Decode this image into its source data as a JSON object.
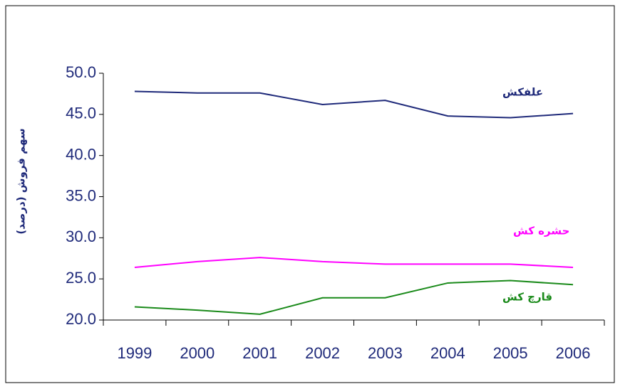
{
  "chart_data": {
    "type": "line",
    "y_axis_label": "سهم فروش (درصد)",
    "categories": [
      "1999",
      "2000",
      "2001",
      "2002",
      "2003",
      "2004",
      "2005",
      "2006"
    ],
    "series": [
      {
        "name": "علفکش",
        "color": "#1f2a7a",
        "values": [
          47.8,
          47.6,
          47.6,
          46.2,
          46.7,
          44.8,
          44.6,
          45.1
        ]
      },
      {
        "name": "حشره کش",
        "color": "#ff00ff",
        "values": [
          26.4,
          27.1,
          27.6,
          27.1,
          26.8,
          26.8,
          26.8,
          26.4
        ]
      },
      {
        "name": "قارچ کش",
        "color": "#1a8a1a",
        "values": [
          21.6,
          21.2,
          20.7,
          22.7,
          22.7,
          24.5,
          24.8,
          24.3
        ]
      }
    ],
    "ylim": [
      20,
      50
    ],
    "yticks": [
      {
        "value": 20,
        "label": "20.0"
      },
      {
        "value": 25,
        "label": "25.0"
      },
      {
        "value": 30,
        "label": "30.0"
      },
      {
        "value": 35,
        "label": "35.0"
      },
      {
        "value": 40,
        "label": "40.0"
      },
      {
        "value": 45,
        "label": "45.0"
      },
      {
        "value": 50,
        "label": "50.0"
      }
    ],
    "grid": false
  }
}
